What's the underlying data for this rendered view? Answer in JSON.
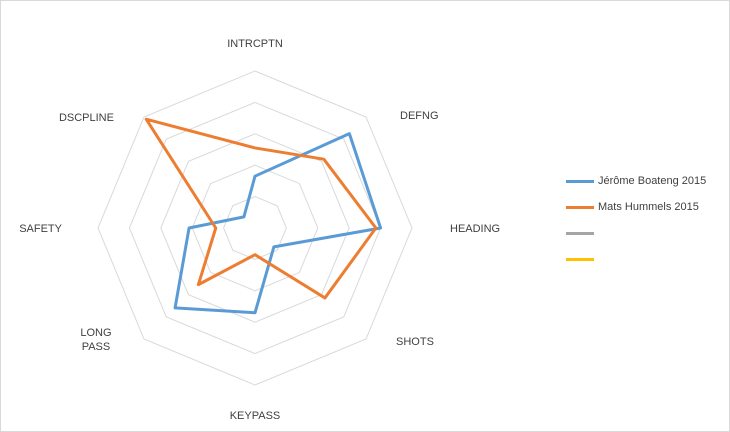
{
  "chart_data": {
    "type": "radar",
    "axes": [
      "INTRCPTN",
      "DEFNG",
      "HEADING",
      "SHOTS",
      "KEYPASS",
      "LONG PASS",
      "SAFETY",
      "DSCPLINE"
    ],
    "rlim": [
      0,
      1
    ],
    "rings": 5,
    "grid": true,
    "legend_position": "right",
    "series": [
      {
        "name": "Jérôme Boateng 2015",
        "color": "#5b9bd5",
        "values": [
          0.33,
          0.85,
          0.8,
          0.17,
          0.54,
          0.72,
          0.42,
          0.1
        ]
      },
      {
        "name": "Mats Hummels 2015",
        "color": "#ed7d31",
        "values": [
          0.51,
          0.62,
          0.77,
          0.63,
          0.17,
          0.51,
          0.25,
          0.98
        ]
      },
      {
        "name": "",
        "color": "#a5a5a5",
        "values": []
      },
      {
        "name": "",
        "color": "#ffc000",
        "values": []
      }
    ]
  }
}
